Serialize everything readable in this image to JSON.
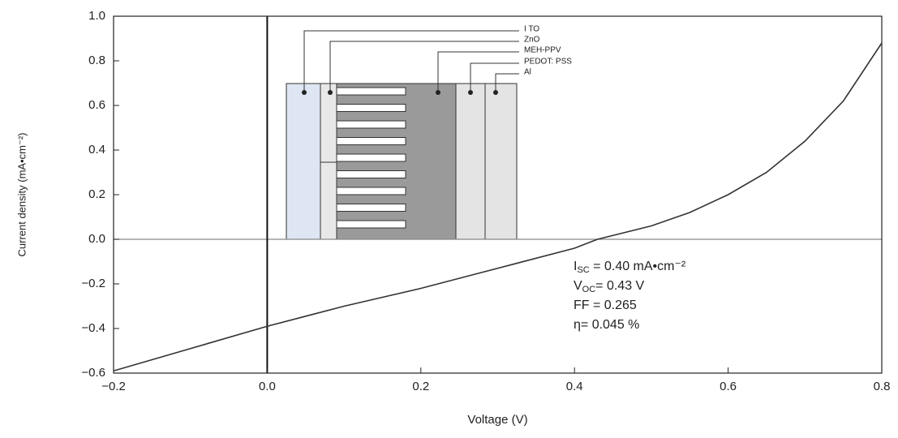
{
  "chart_data": {
    "type": "line",
    "x_label": "Voltage (V)",
    "y_label": "Current density (mA•cm⁻²)",
    "x": [
      -0.2,
      -0.1,
      0.0,
      0.1,
      0.2,
      0.3,
      0.4,
      0.43,
      0.5,
      0.55,
      0.6,
      0.65,
      0.7,
      0.75,
      0.8
    ],
    "values": [
      -0.59,
      -0.49,
      -0.39,
      -0.3,
      -0.22,
      -0.13,
      -0.04,
      0.0,
      0.06,
      0.12,
      0.2,
      0.3,
      0.44,
      0.62,
      0.88
    ],
    "color": "#333333",
    "xlim": [
      -0.2,
      0.8
    ],
    "ylim": [
      -0.6,
      1.0
    ],
    "xticks": [
      {
        "value": -0.2,
        "label": "−0.2"
      },
      {
        "value": 0,
        "label": "0.0"
      },
      0.2,
      0.4,
      0.6,
      0.8
    ],
    "yticks": [
      {
        "value": -0.6,
        "label": "−0.6"
      },
      {
        "value": -0.4,
        "label": "−0.4"
      },
      {
        "value": -0.2,
        "label": "−0.2"
      },
      {
        "value": 0,
        "label": "0.0"
      },
      0.2,
      0.4,
      0.6,
      0.8,
      {
        "value": 1,
        "label": "1.0"
      }
    ],
    "annotations": [
      [
        "I",
        "SC",
        " = 0.40 mA•cm⁻²"
      ],
      [
        "V",
        "OC",
        "= 0.43 V"
      ],
      [
        "FF = 0.265"
      ],
      [
        "η= 0.045 %"
      ]
    ],
    "inset_labels": [
      "I TO",
      "ZnO",
      "MEH-PPV",
      "PEDOT: PSS",
      "Al"
    ]
  }
}
